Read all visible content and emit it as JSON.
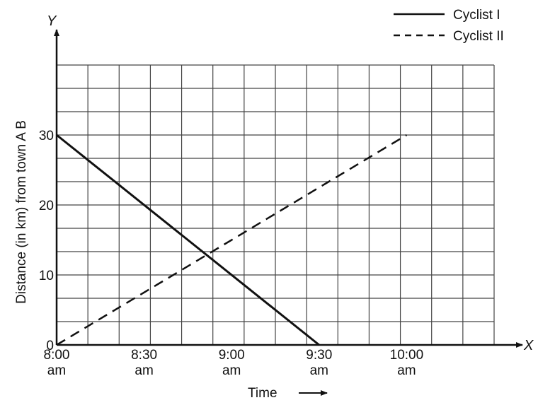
{
  "chart_data": {
    "type": "line",
    "title": "",
    "xlabel": "Time",
    "ylabel": "Distance (in km) from town A B",
    "x_axis_letter": "X",
    "y_axis_letter": "Y",
    "x_ticks": [
      {
        "top": "8:00",
        "bottom": "am"
      },
      {
        "top": "8:30",
        "bottom": "am"
      },
      {
        "top": "9:00",
        "bottom": "am"
      },
      {
        "top": "9:30",
        "bottom": "am"
      },
      {
        "top": "10:00",
        "bottom": "am"
      }
    ],
    "y_ticks": [
      "0",
      "10",
      "20",
      "30"
    ],
    "xlim_minutes_after_8am": [
      0,
      150
    ],
    "ylim": [
      0,
      40
    ],
    "grid": true,
    "legend_position": "top-right",
    "series": [
      {
        "name": "Cyclist I",
        "style": "solid",
        "points": [
          {
            "x": "8:00 am",
            "y": 30
          },
          {
            "x": "9:30 am",
            "y": 0
          }
        ]
      },
      {
        "name": "Cyclist II",
        "style": "dashed",
        "points": [
          {
            "x": "8:00 am",
            "y": 0
          },
          {
            "x": "10:00 am",
            "y": 30
          }
        ]
      }
    ]
  }
}
